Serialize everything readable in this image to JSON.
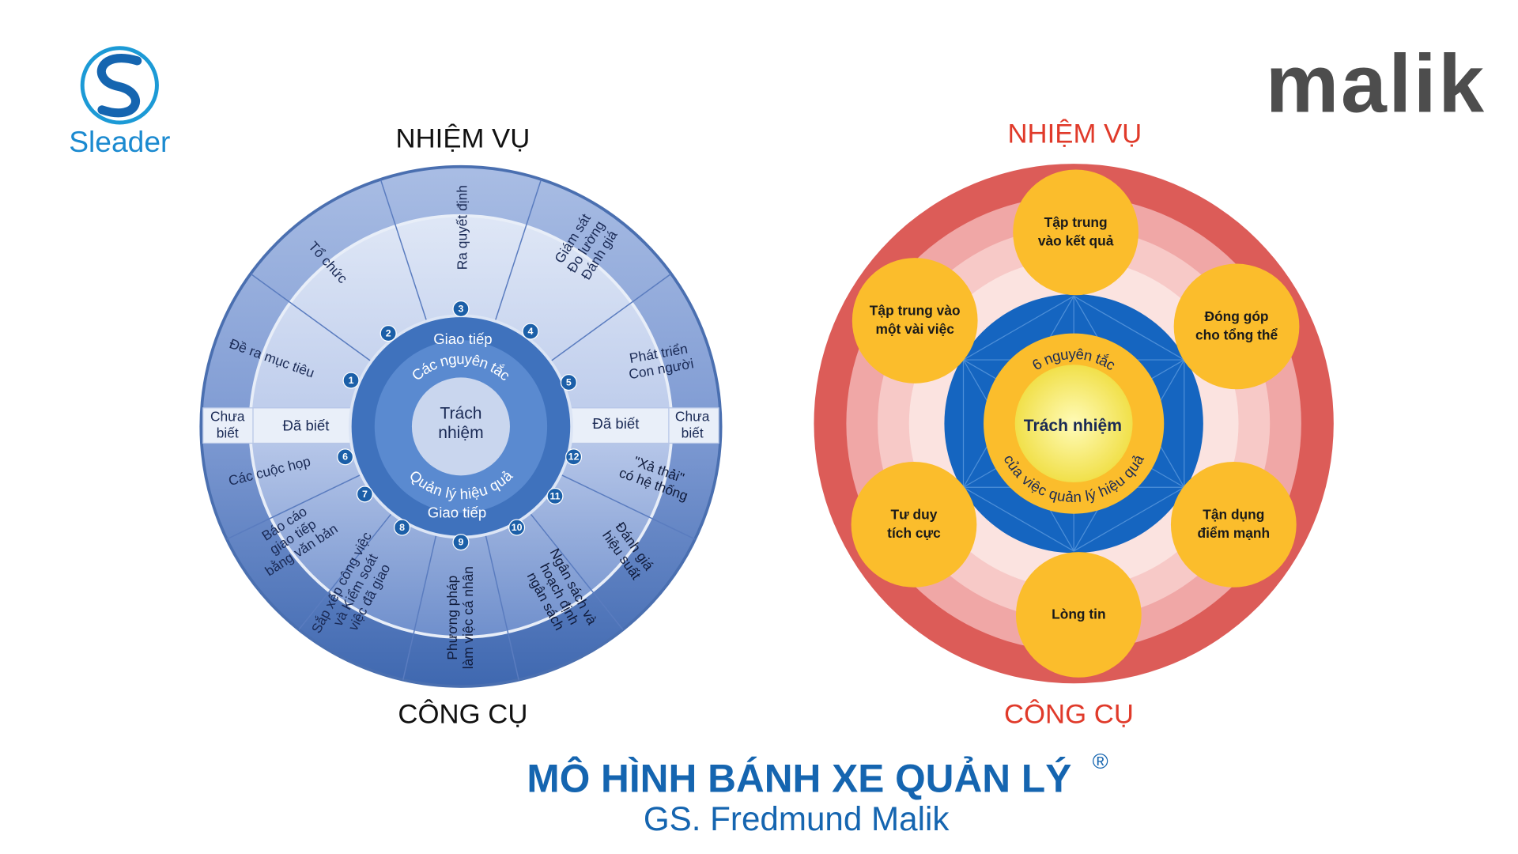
{
  "logos": {
    "left": "Sleader",
    "right": "malik"
  },
  "title": "MÔ HÌNH BÁNH XE QUẢN LÝ",
  "title_mark": "®",
  "subtitle": "GS. Fredmund Malik",
  "left_wheel": {
    "top_label": "NHIỆM VỤ",
    "bottom_label": "CÔNG CỤ",
    "core": [
      "Trách",
      "nhiệm"
    ],
    "principles": "Các nguyên tắc",
    "effective": "Quản lý hiệu quả",
    "communication_top": "Giao tiếp",
    "communication_bottom": "Giao tiếp",
    "known_left": "Đã biết",
    "unknown_left": [
      "Chưa",
      "biết"
    ],
    "known_right": "Đã biết",
    "unknown_right": [
      "Chưa",
      "biết"
    ],
    "tasks": [
      {
        "number": "1",
        "label": [
          "Đề ra mục tiêu"
        ]
      },
      {
        "number": "2",
        "label": [
          "Tổ chức"
        ]
      },
      {
        "number": "3",
        "label": [
          "Ra quyết định"
        ]
      },
      {
        "number": "4",
        "label": [
          "Giám sát",
          "Đo lường",
          "Đánh giá"
        ]
      },
      {
        "number": "5",
        "label": [
          "Phát triển",
          "Con người"
        ]
      }
    ],
    "tools": [
      {
        "number": "6",
        "label": [
          "Các cuộc họp"
        ]
      },
      {
        "number": "7",
        "label": [
          "Báo cáo",
          "giao tiếp",
          "bằng văn bản"
        ]
      },
      {
        "number": "8",
        "label": [
          "Sắp xếp công việc",
          "và Kiểm soát",
          "việc đã giao"
        ]
      },
      {
        "number": "9",
        "label": [
          "Phương pháp",
          "làm việc cá nhân"
        ]
      },
      {
        "number": "10",
        "label": [
          "Ngân sách và",
          "hoạch định",
          "ngân sách"
        ]
      },
      {
        "number": "11",
        "label": [
          "Đánh giá",
          "hiệu suất"
        ]
      },
      {
        "number": "12",
        "label": [
          "\"Xả thải\"",
          "có hệ thống"
        ]
      }
    ]
  },
  "right_wheel": {
    "top_label": "NHIỆM VỤ",
    "bottom_label": "CÔNG CỤ",
    "inner_top": "6 nguyên tắc",
    "center": "Trách nhiệm",
    "inner_bottom": "của việc quản lý hiệu quả",
    "principles": [
      [
        "Tập trung",
        "vào kết quả"
      ],
      [
        "Tập trung vào",
        "một vài việc"
      ],
      [
        "Đóng góp",
        "cho tổng thể"
      ],
      [
        "Tư duy",
        "tích cực"
      ],
      [
        "Tận dụng",
        "điểm mạnh"
      ],
      [
        "Lòng tin"
      ]
    ]
  }
}
